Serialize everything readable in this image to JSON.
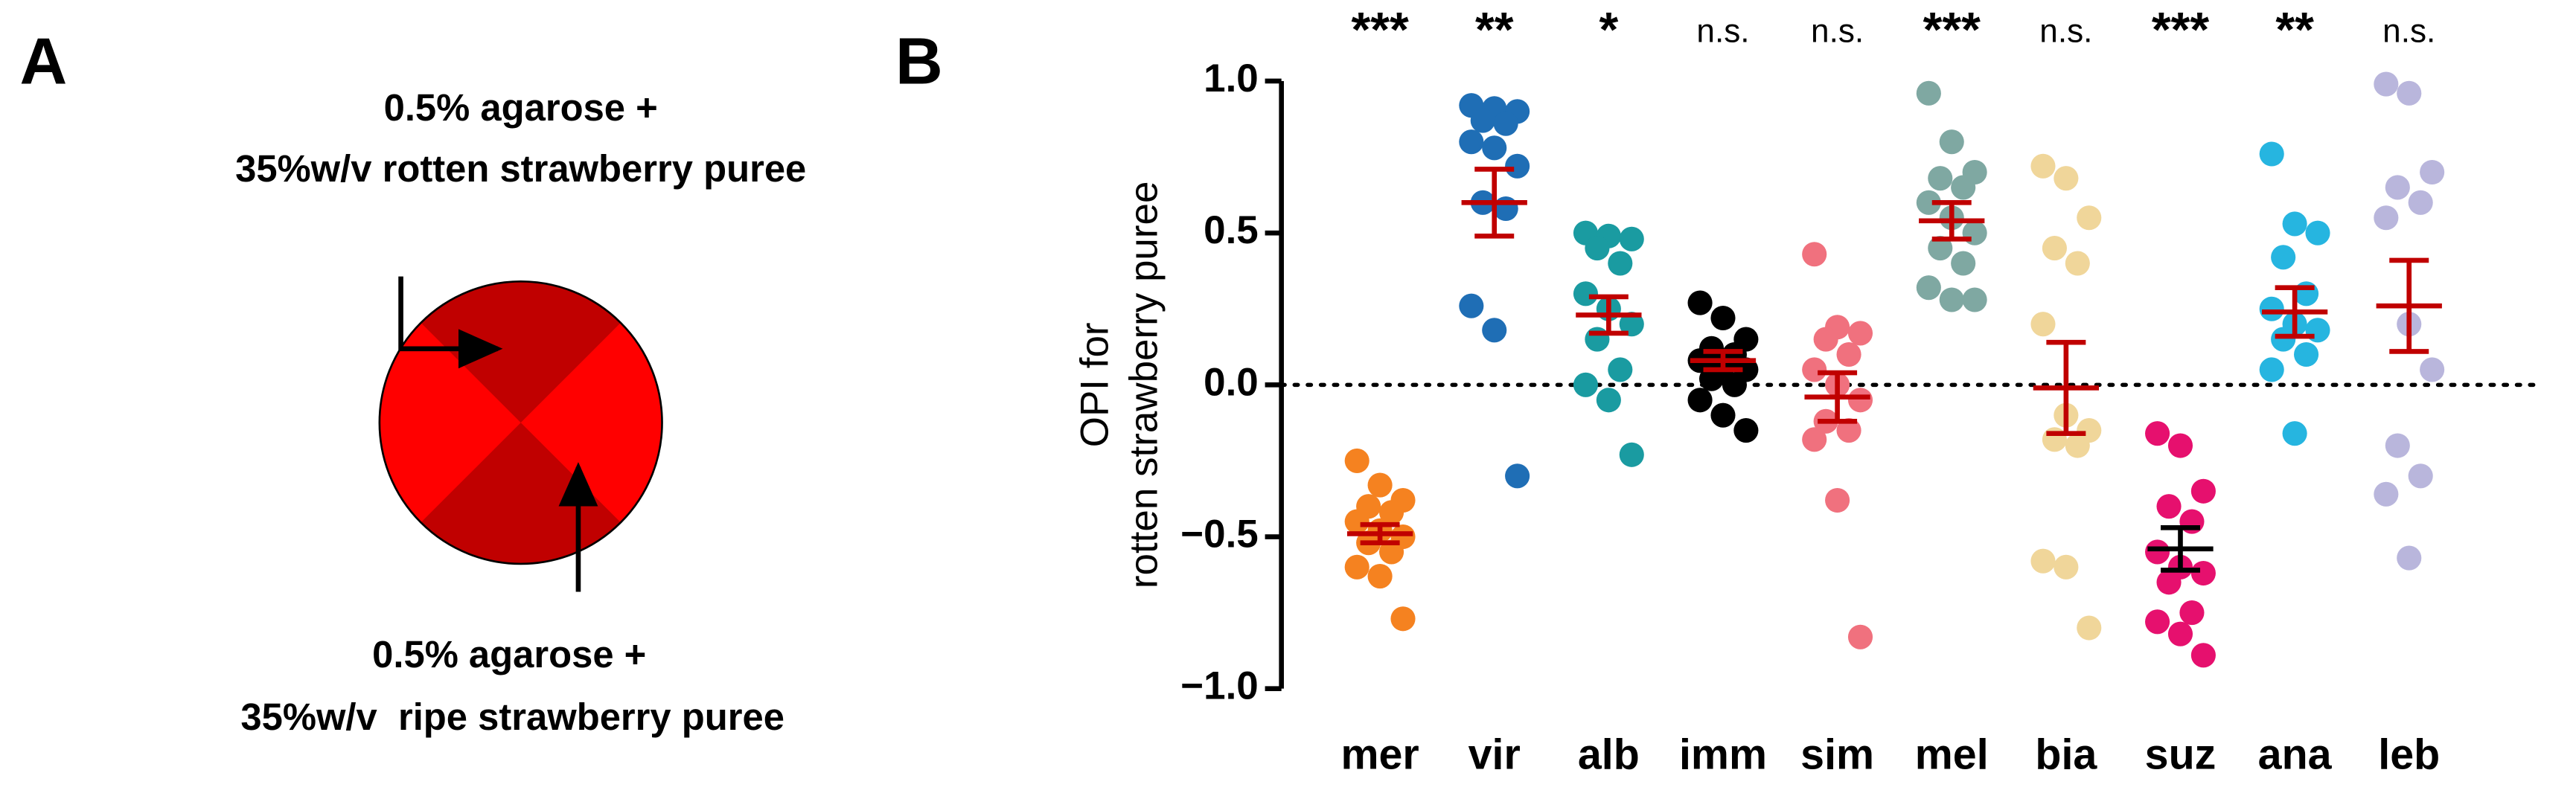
{
  "diagram": {
    "panel_label": "A",
    "top_label": [
      "0.5% agarose +",
      "35%w/v rotten strawberry puree"
    ],
    "bottom_label": [
      "0.5% agarose +",
      "35%w/v  ripe strawberry puree"
    ]
  },
  "chart_data": {
    "type": "dot",
    "panel_label": "B",
    "ylabel": [
      "OPI for",
      "rotten strawberry puree"
    ],
    "ylim": [
      -1.0,
      1.0
    ],
    "yticks": [
      {
        "value": 1.0,
        "label": "1.0"
      },
      {
        "value": 0.5,
        "label": "0.5"
      },
      {
        "value": 0,
        "label": "0.0"
      },
      {
        "value": -0.5,
        "label": "−0.5"
      },
      {
        "value": -1.0,
        "label": "−1.0"
      }
    ],
    "reference_line": 0,
    "groups": [
      {
        "name": "mer",
        "significance": "***",
        "color": "#f58220",
        "error_color": "#c00000",
        "values": [
          -0.25,
          -0.33,
          -0.38,
          -0.4,
          -0.42,
          -0.45,
          -0.48,
          -0.5,
          -0.52,
          -0.55,
          -0.6,
          -0.63,
          -0.77
        ],
        "mean": -0.49,
        "sem": 0.03
      },
      {
        "name": "vir",
        "significance": "**",
        "color": "#1f6eb5",
        "error_color": "#c00000",
        "values": [
          0.92,
          0.91,
          0.9,
          0.87,
          0.86,
          0.8,
          0.78,
          0.72,
          0.6,
          0.58,
          0.26,
          0.18,
          -0.3
        ],
        "mean": 0.6,
        "sem": 0.11
      },
      {
        "name": "alb",
        "significance": "*",
        "color": "#1a9ba1",
        "error_color": "#c00000",
        "values": [
          0.5,
          0.49,
          0.48,
          0.45,
          0.4,
          0.3,
          0.25,
          0.2,
          0.15,
          0.05,
          0.0,
          -0.05,
          -0.23
        ],
        "mean": 0.23,
        "sem": 0.06
      },
      {
        "name": "imm",
        "significance": "n.s.",
        "color": "#000000",
        "error_color": "#c00000",
        "values": [
          0.27,
          0.22,
          0.15,
          0.12,
          0.1,
          0.08,
          0.06,
          0.05,
          0.02,
          0.0,
          -0.05,
          -0.1,
          -0.15
        ],
        "mean": 0.08,
        "sem": 0.03
      },
      {
        "name": "sim",
        "significance": "n.s.",
        "color": "#f0717e",
        "error_color": "#c00000",
        "values": [
          0.43,
          0.19,
          0.17,
          0.15,
          0.1,
          0.05,
          0.0,
          -0.05,
          -0.12,
          -0.15,
          -0.18,
          -0.38,
          -0.83
        ],
        "mean": -0.04,
        "sem": 0.08
      },
      {
        "name": "mel",
        "significance": "***",
        "color": "#7fa8a2",
        "error_color": "#c00000",
        "values": [
          0.96,
          0.8,
          0.7,
          0.68,
          0.65,
          0.6,
          0.55,
          0.5,
          0.45,
          0.4,
          0.32,
          0.28,
          0.28
        ],
        "mean": 0.54,
        "sem": 0.06
      },
      {
        "name": "bia",
        "significance": "n.s.",
        "color": "#f0d69a",
        "error_color": "#c00000",
        "values": [
          0.72,
          0.68,
          0.55,
          0.45,
          0.4,
          0.2,
          -0.1,
          -0.15,
          -0.18,
          -0.2,
          -0.58,
          -0.6,
          -0.8
        ],
        "mean": -0.01,
        "sem": 0.15
      },
      {
        "name": "suz",
        "significance": "***",
        "color": "#e6106e",
        "error_color": "#000000",
        "values": [
          -0.16,
          -0.2,
          -0.35,
          -0.4,
          -0.45,
          -0.55,
          -0.6,
          -0.62,
          -0.65,
          -0.75,
          -0.78,
          -0.82,
          -0.89
        ],
        "mean": -0.54,
        "sem": 0.07
      },
      {
        "name": "ana",
        "significance": "**",
        "color": "#26b5e0",
        "error_color": "#c00000",
        "values": [
          0.76,
          0.53,
          0.5,
          0.42,
          0.3,
          0.25,
          0.2,
          0.18,
          0.15,
          0.1,
          0.05,
          -0.16
        ],
        "mean": 0.24,
        "sem": 0.08
      },
      {
        "name": "leb",
        "significance": "n.s.",
        "color": "#b9b6dc",
        "error_color": "#c00000",
        "values": [
          0.99,
          0.96,
          0.7,
          0.65,
          0.6,
          0.55,
          0.2,
          0.05,
          -0.2,
          -0.3,
          -0.36,
          -0.57
        ],
        "mean": 0.26,
        "sem": 0.15
      }
    ]
  }
}
